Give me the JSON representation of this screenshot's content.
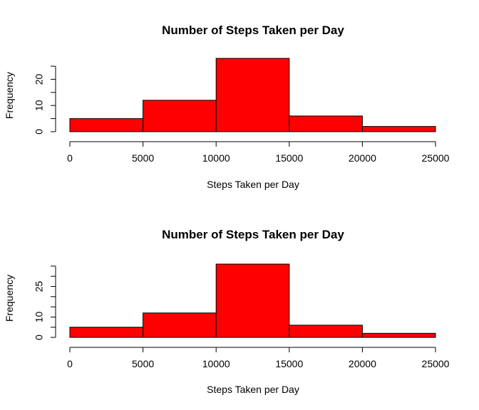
{
  "chart_data": [
    {
      "type": "bar",
      "title": "Number of Steps Taken per Day",
      "xlabel": "Steps Taken per Day",
      "ylabel": "Frequency",
      "bins": [
        [
          0,
          5000
        ],
        [
          5000,
          10000
        ],
        [
          10000,
          15000
        ],
        [
          15000,
          20000
        ],
        [
          20000,
          25000
        ]
      ],
      "values": [
        5,
        12,
        28,
        6,
        2
      ],
      "xticks": [
        0,
        5000,
        10000,
        15000,
        20000,
        25000
      ],
      "yticks": [
        0,
        10,
        20
      ],
      "ytick_minor": [
        0,
        5,
        10,
        15,
        20,
        25
      ],
      "ylim": [
        0,
        28
      ],
      "grid": false,
      "bar_color": "#ff0000"
    },
    {
      "type": "bar",
      "title": "Number of Steps Taken per Day",
      "xlabel": "Steps Taken per Day",
      "ylabel": "Frequency",
      "bins": [
        [
          0,
          5000
        ],
        [
          5000,
          10000
        ],
        [
          10000,
          15000
        ],
        [
          15000,
          20000
        ],
        [
          20000,
          25000
        ]
      ],
      "values": [
        5,
        12,
        36,
        6,
        2
      ],
      "xticks": [
        0,
        5000,
        10000,
        15000,
        20000,
        25000
      ],
      "yticks": [
        0,
        10,
        25
      ],
      "ytick_minor": [
        0,
        5,
        10,
        15,
        20,
        25,
        30,
        35
      ],
      "ylim": [
        0,
        36
      ],
      "grid": false,
      "bar_color": "#ff0000"
    }
  ]
}
